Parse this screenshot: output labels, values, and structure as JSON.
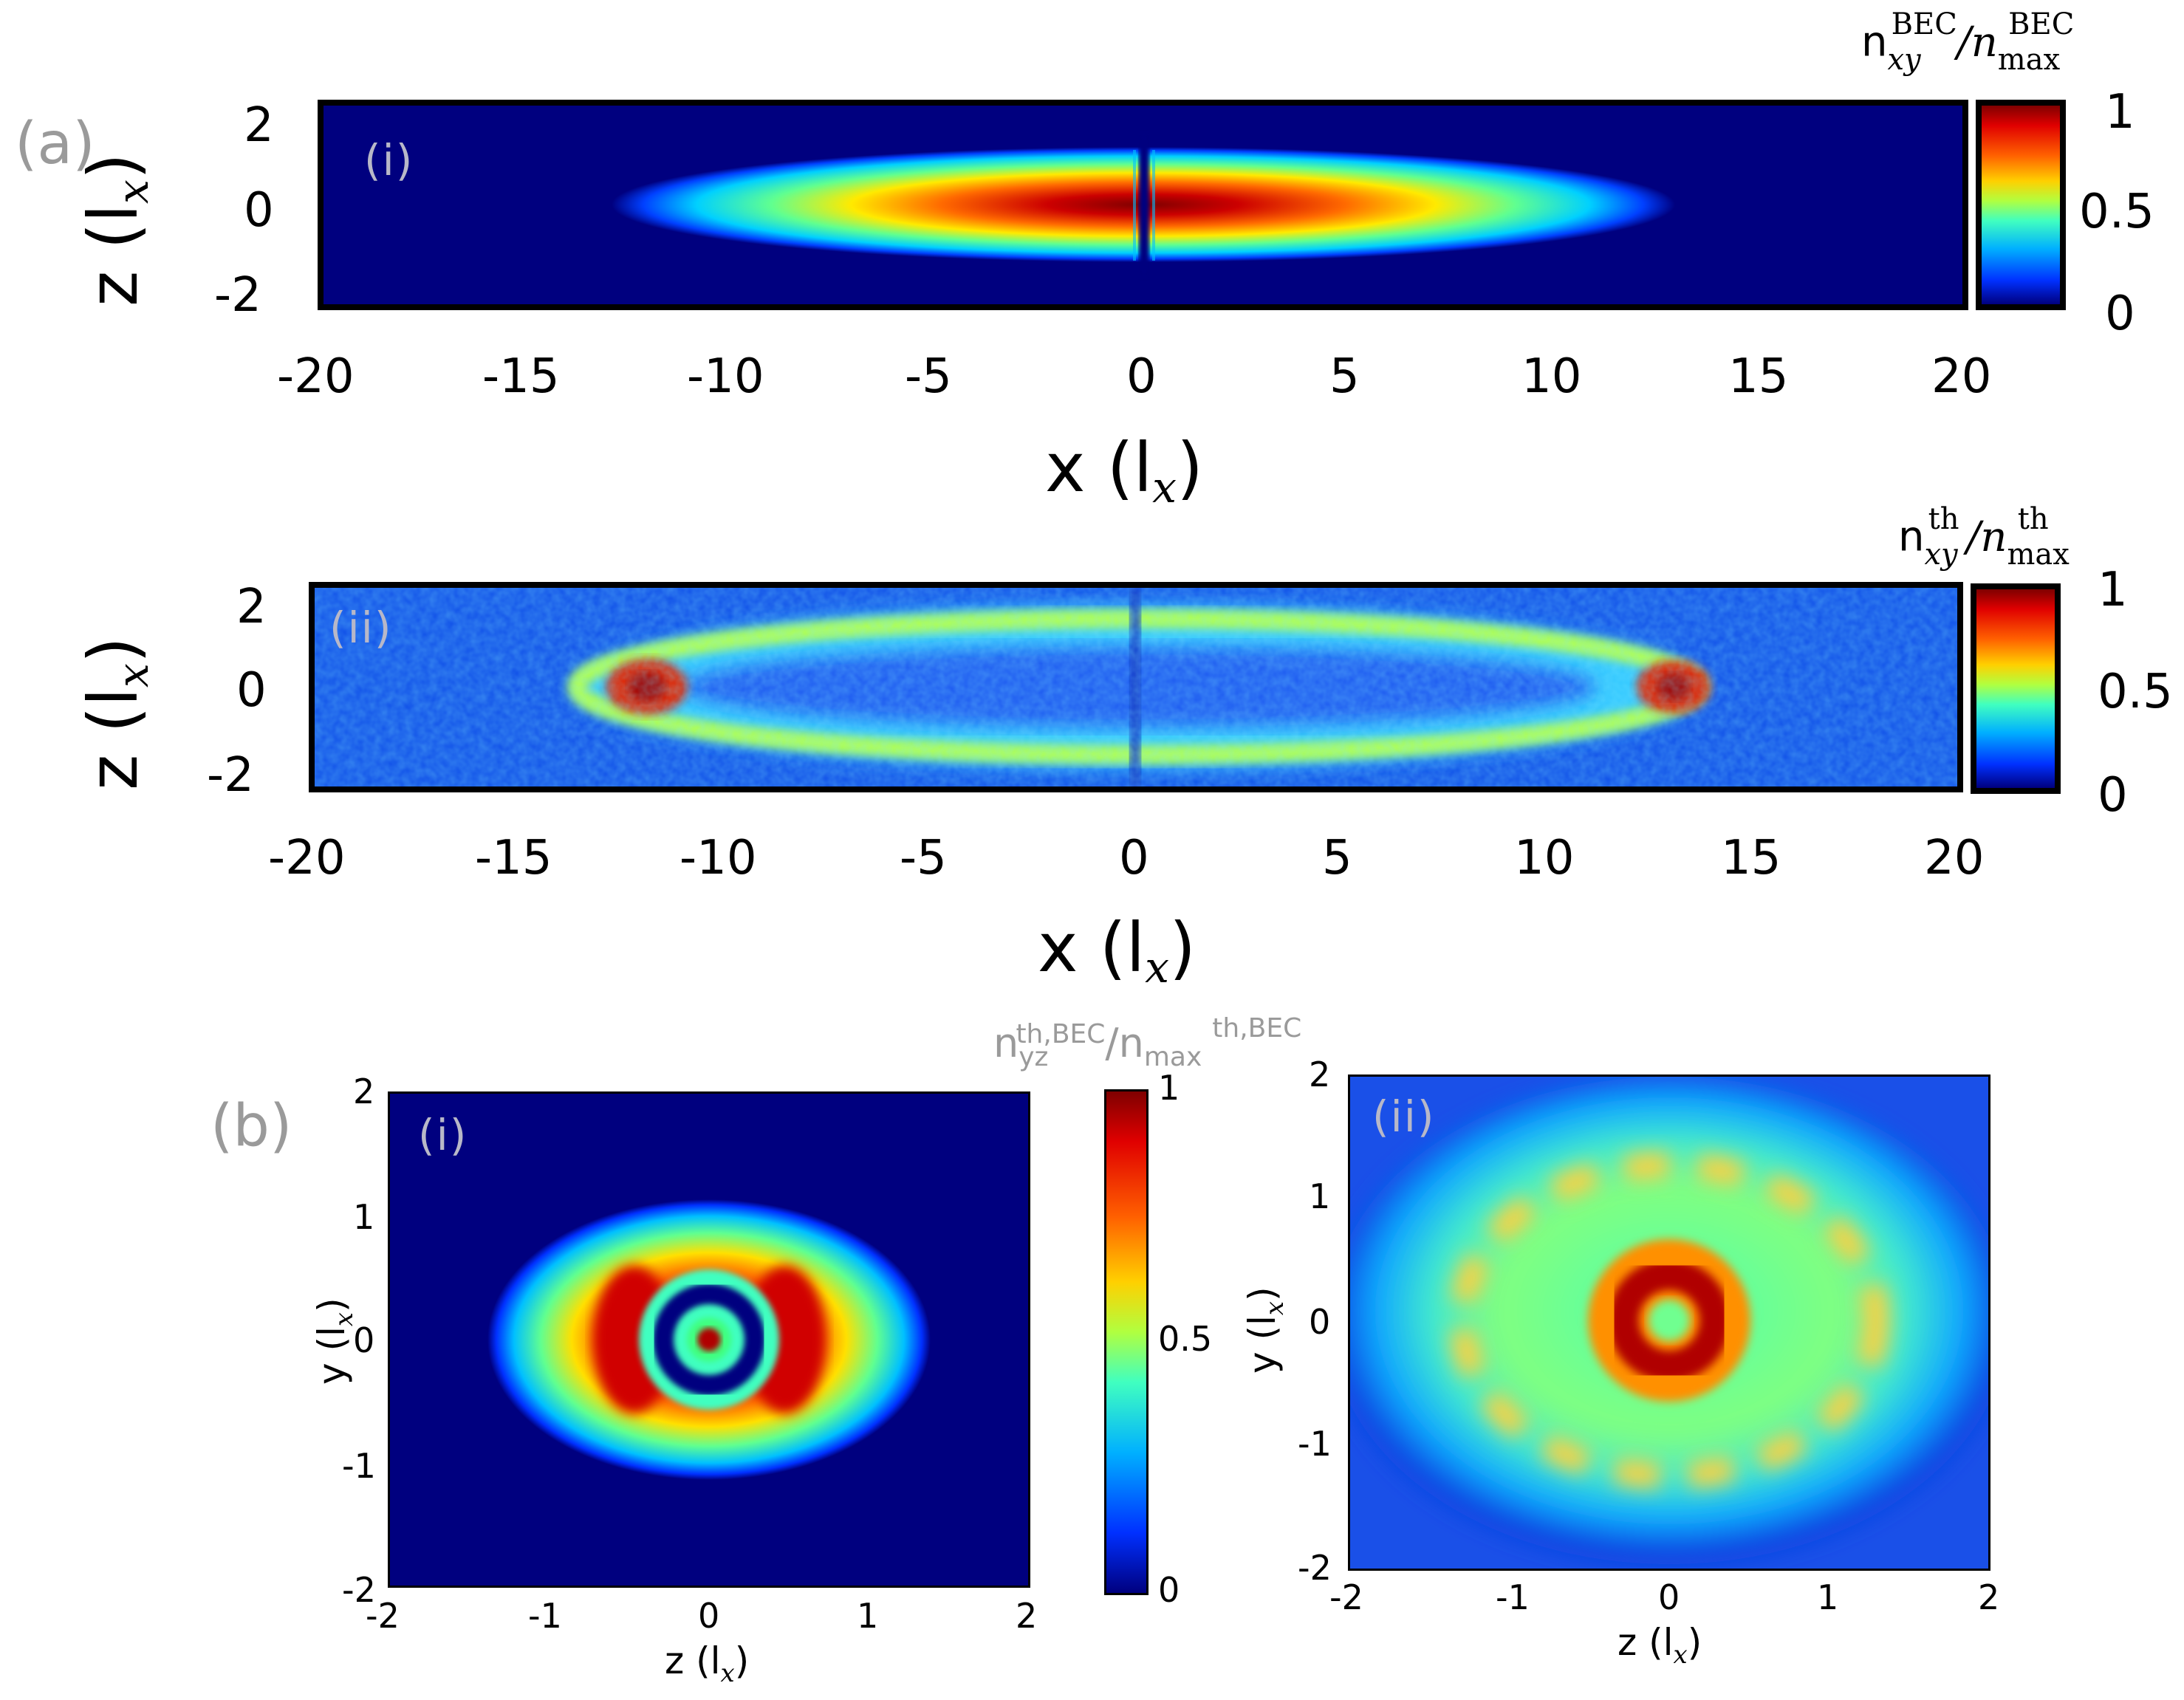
{
  "panels": {
    "a": {
      "letter": "(a)",
      "i": {
        "label": "(i)",
        "colorbar_title_n": "n",
        "colorbar_title_sub": "xy",
        "colorbar_title_sup": "BEC",
        "colorbar_title_den": "/n",
        "colorbar_title_den_sub": "max",
        "colorbar_title_den_sup": "BEC",
        "colorbar_ticks": [
          "1",
          "0.5",
          "0"
        ],
        "xlabel": "x (l",
        "xlabel_sub": "x",
        "xlabel_end": ")",
        "ylabel": "z (l",
        "ylabel_sub": "x",
        "ylabel_end": ")"
      },
      "ii": {
        "label": "(ii)",
        "colorbar_title_n": "n",
        "colorbar_title_sub": "xy",
        "colorbar_title_sup": "th",
        "colorbar_title_den": "/n",
        "colorbar_title_den_sub": "max",
        "colorbar_title_den_sup": "th",
        "colorbar_ticks": [
          "1",
          "0.5",
          "0"
        ],
        "xlabel": "x (l",
        "xlabel_sub": "x",
        "xlabel_end": ")",
        "ylabel": "z (l",
        "ylabel_sub": "x",
        "ylabel_end": ")"
      }
    },
    "b": {
      "letter": "(b)",
      "colorbar_title": "n",
      "colorbar_title_sub": "yz",
      "colorbar_title_sup": "th,BEC",
      "colorbar_title_den": "/n",
      "colorbar_title_den_sub": "max",
      "colorbar_title_den_sup": "th,BEC",
      "colorbar_ticks": [
        "1",
        "0.5",
        "0"
      ],
      "i": {
        "label": "(i)",
        "xlabel": "z (l",
        "xlabel_sub": "x",
        "xlabel_end": ")",
        "ylabel": "y (l",
        "ylabel_sub": "x",
        "ylabel_end": ")"
      },
      "ii": {
        "label": "(ii)",
        "xlabel": "z (l",
        "xlabel_sub": "x",
        "xlabel_end": ")",
        "ylabel": "y (l",
        "ylabel_sub": "x",
        "ylabel_end": ")"
      }
    }
  },
  "chart_data": [
    {
      "type": "heatmap",
      "panel": "(a)(i)",
      "description_of_density": "BEC column density n_xy^BEC / n_max^BEC",
      "xlim": [
        -20,
        20
      ],
      "ylim": [
        -2.5,
        2.5
      ],
      "x_ticks": [
        "-20",
        "-15",
        "-10",
        "-5",
        "0",
        "5",
        "10",
        "15",
        "20"
      ],
      "y_ticks": [
        "2",
        "0",
        "-2"
      ],
      "colorbar": {
        "min": 0,
        "max": 1,
        "ticks": [
          "1",
          "0.5",
          "0"
        ],
        "colormap": "jet"
      },
      "feature": {
        "ellipse_half_length_x": 12.5,
        "ellipse_half_width_z": 1.1,
        "dark_soliton_at_x": 0,
        "peak": 1
      }
    },
    {
      "type": "heatmap",
      "panel": "(a)(ii)",
      "xlim": [
        -20,
        20
      ],
      "ylim": [
        -2.5,
        2.5
      ],
      "x_ticks": [
        "-20",
        "-15",
        "-10",
        "-5",
        "0",
        "5",
        "10",
        "15",
        "20"
      ],
      "y_ticks": [
        "2",
        "0",
        "-2"
      ],
      "colorbar": {
        "min": 0,
        "max": 1,
        "ticks": [
          "1",
          "0.5",
          "0"
        ],
        "colormap": "jet"
      },
      "feature": {
        "thermal_shell_half_length_x": 13,
        "thermal_shell_half_width_z": 1.3,
        "hot_spots_x": [
          -12,
          13.5
        ]
      }
    },
    {
      "type": "heatmap",
      "panel": "(b)(i)",
      "xlim": [
        -2,
        2
      ],
      "ylim": [
        -2,
        2
      ],
      "x_ticks": [
        "-2",
        "-1",
        "0",
        "1",
        "2"
      ],
      "y_ticks": [
        "2",
        "1",
        "0",
        "-1",
        "-2"
      ],
      "colorbar": {
        "min": 0,
        "max": 1,
        "ticks": [
          "1",
          "0.5",
          "0"
        ],
        "colormap": "jet"
      },
      "feature": {
        "cloud_half_width_z": 1.3,
        "cloud_half_height_y": 0.8,
        "vortex_ring_radius": 0.3
      }
    },
    {
      "type": "heatmap",
      "panel": "(b)(ii)",
      "xlim": [
        -2,
        2
      ],
      "ylim": [
        -2,
        2
      ],
      "x_ticks": [
        "-2",
        "-1",
        "0",
        "1",
        "2"
      ],
      "y_ticks": [
        "2",
        "1",
        "0",
        "-1",
        "-2"
      ],
      "colorbar": {
        "min": 0,
        "max": 1,
        "ticks": [
          "1",
          "0.5",
          "0"
        ],
        "colormap": "jet"
      },
      "feature": {
        "cloud_half_width_z": 1.9,
        "cloud_half_height_y": 1.5,
        "hot_ring_radius": 0.35
      }
    }
  ]
}
